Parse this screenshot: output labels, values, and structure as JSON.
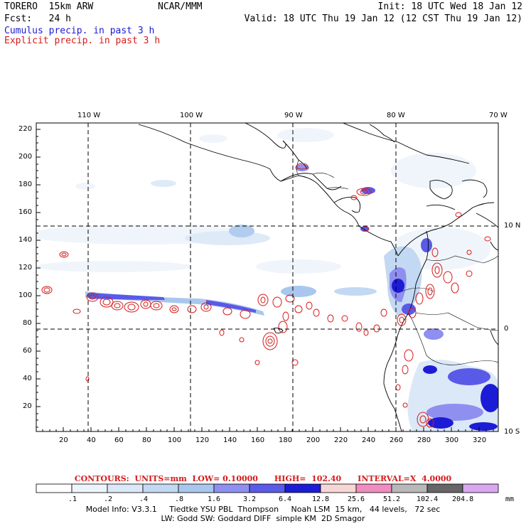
{
  "header": {
    "model": "TORERO  15km ARW",
    "center": "NCAR/MMM",
    "init": "Init: 18 UTC Wed 18 Jan 12",
    "fcst": "Fcst:   24 h",
    "valid": "Valid: 18 UTC Thu 19 Jan 12 (12 CST Thu 19 Jan 12)",
    "line3": "Cumulus precip. in past 3 h",
    "line4": "Explicit precip. in past 3 h"
  },
  "top_axis_labels": [
    "110 W",
    "100 W",
    "90 W",
    "80 W",
    "70 W"
  ],
  "right_axis_labels": [
    "10 N",
    "0",
    "10 S"
  ],
  "left_axis_labels": [
    "220",
    "200",
    "180",
    "160",
    "140",
    "120",
    "100",
    "80",
    "60",
    "40",
    "20"
  ],
  "bottom_axis_labels": [
    "20",
    "40",
    "60",
    "80",
    "100",
    "120",
    "140",
    "160",
    "180",
    "200",
    "220",
    "240",
    "260",
    "280",
    "300",
    "320"
  ],
  "contours_line": "CONTOURS:  UNITS=mm  LOW= 0.10000      HIGH=  102.40      INTERVAL=X  4.0000",
  "colorbar": {
    "labels": [
      ".1",
      ".2",
      ".4",
      ".8",
      "1.6",
      "3.2",
      "6.4",
      "12.8",
      "25.6",
      "51.2",
      "102.4",
      "204.8"
    ],
    "unit": "mm",
    "colors": [
      "#ffffff",
      "#eef4fb",
      "#dbe8f7",
      "#c3d8f2",
      "#a9c7ee",
      "#8f8ff0",
      "#5a5ae8",
      "#1c1cd6",
      "#f7d6d6",
      "#f08cc0",
      "#b8b8b8",
      "#666666",
      "#d9a8f0"
    ]
  },
  "model_info": {
    "line1": "Model Info: V3.3.1     Tiedtke YSU PBL  Thompson     Noah LSM  15 km,   44 levels,   72 sec",
    "line2": "LW: Godd SW: Goddard DIFF  simple KM  2D Smagor"
  },
  "colors": {
    "cumulus": "#1a1ad6",
    "explicit": "#d61a1a"
  }
}
